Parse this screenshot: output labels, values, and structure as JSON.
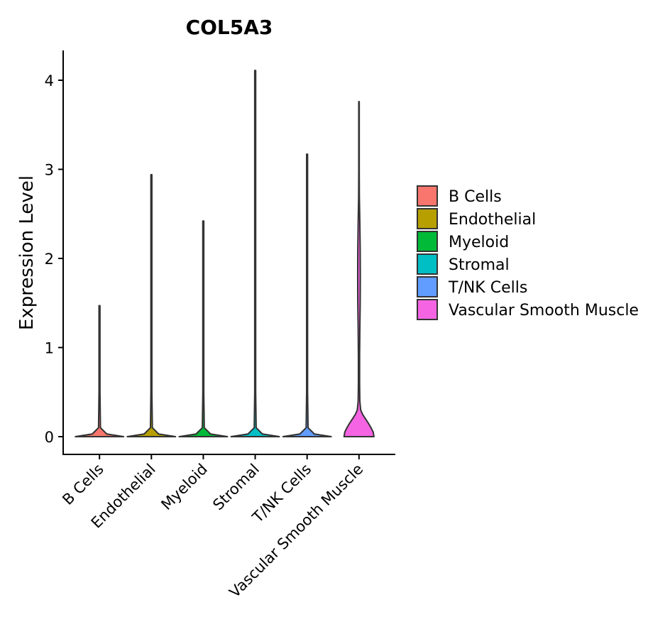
{
  "chart_data": {
    "type": "violin",
    "title": "COL5A3",
    "xlabel": "",
    "ylabel": "Expression Level",
    "ylim": [
      -0.2,
      4.33
    ],
    "yticks": [
      0,
      1,
      2,
      3,
      4
    ],
    "grid": false,
    "legend_position": "right",
    "categories": [
      "B Cells",
      "Endothelial",
      "Myeloid",
      "Stromal",
      "T/NK Cells",
      "Vascular Smooth Muscle"
    ],
    "colors": [
      "#F8766D",
      "#B79F00",
      "#00BA38",
      "#00BFC4",
      "#619CFF",
      "#F564E3"
    ],
    "max_values": [
      1.47,
      2.94,
      2.42,
      4.11,
      3.17,
      3.76
    ],
    "density_profiles": [
      [
        [
          0,
          1
        ],
        [
          0.03,
          0.3
        ],
        [
          0.1,
          0.04
        ],
        [
          0.5,
          0.02
        ],
        [
          1.47,
          0.02
        ]
      ],
      [
        [
          0,
          1
        ],
        [
          0.03,
          0.3
        ],
        [
          0.1,
          0.04
        ],
        [
          0.5,
          0.02
        ],
        [
          2.94,
          0.02
        ]
      ],
      [
        [
          0,
          1
        ],
        [
          0.03,
          0.3
        ],
        [
          0.1,
          0.04
        ],
        [
          0.5,
          0.02
        ],
        [
          2.42,
          0.02
        ]
      ],
      [
        [
          0,
          1
        ],
        [
          0.03,
          0.3
        ],
        [
          0.1,
          0.04
        ],
        [
          0.5,
          0.02
        ],
        [
          4.11,
          0.02
        ]
      ],
      [
        [
          0,
          1
        ],
        [
          0.03,
          0.3
        ],
        [
          0.1,
          0.04
        ],
        [
          0.5,
          0.02
        ],
        [
          3.17,
          0.02
        ]
      ],
      [
        [
          0,
          0.62
        ],
        [
          0.05,
          0.59
        ],
        [
          0.1,
          0.5
        ],
        [
          0.15,
          0.39
        ],
        [
          0.2,
          0.27
        ],
        [
          0.25,
          0.15
        ],
        [
          0.3,
          0.07
        ],
        [
          0.4,
          0.035
        ],
        [
          0.6,
          0.025
        ],
        [
          0.9,
          0.025
        ],
        [
          1.2,
          0.035
        ],
        [
          1.5,
          0.05
        ],
        [
          1.8,
          0.055
        ],
        [
          2.1,
          0.05
        ],
        [
          2.4,
          0.035
        ],
        [
          2.7,
          0.015
        ],
        [
          3.0,
          0.01
        ],
        [
          3.76,
          0.01
        ]
      ]
    ]
  }
}
